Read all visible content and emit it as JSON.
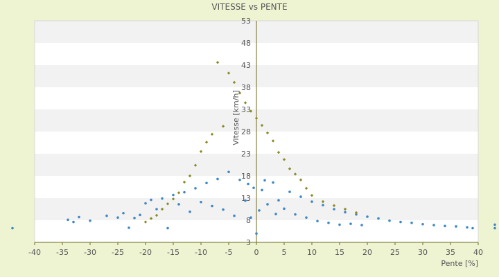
{
  "chart_data": {
    "type": "scatter",
    "title": "VITESSE vs PENTE",
    "xlabel": "Pente [%]",
    "ylabel": "Vitesse [km/h]",
    "xlim": [
      -40,
      40
    ],
    "ylim": [
      3,
      53
    ],
    "x_ticks": [
      -40,
      -35,
      -30,
      -25,
      -20,
      -15,
      -10,
      -5,
      0,
      5,
      10,
      15,
      20,
      25,
      30,
      35,
      40
    ],
    "y_ticks": [
      3,
      8,
      13,
      18,
      23,
      28,
      33,
      38,
      43,
      48,
      53
    ],
    "grid": "horizontal-bands",
    "legend": "none",
    "series": [
      {
        "color": "#3f88c5",
        "marker": "point",
        "points": [
          [
            -44,
            6.2
          ],
          [
            -34,
            8.1
          ],
          [
            -33,
            7.6
          ],
          [
            -32,
            8.7
          ],
          [
            -30,
            7.9
          ],
          [
            -27,
            9.0
          ],
          [
            -25,
            8.6
          ],
          [
            -24,
            9.6
          ],
          [
            -23,
            6.3
          ],
          [
            -22,
            8.5
          ],
          [
            -21,
            9.2
          ],
          [
            -20,
            11.8
          ],
          [
            -19,
            12.6
          ],
          [
            -18,
            10.5
          ],
          [
            -17,
            12.9
          ],
          [
            -16,
            6.2
          ],
          [
            -15,
            13.7
          ],
          [
            -14,
            11.6
          ],
          [
            -13,
            14.3
          ],
          [
            -12,
            9.9
          ],
          [
            -11,
            15.2
          ],
          [
            -10,
            12.1
          ],
          [
            -9,
            16.4
          ],
          [
            -8,
            11.2
          ],
          [
            -7,
            17.3
          ],
          [
            -6,
            10.4
          ],
          [
            -5,
            18.9
          ],
          [
            -4,
            9.0
          ],
          [
            -3,
            17.1
          ],
          [
            -2,
            12.4
          ],
          [
            -1.5,
            16.2
          ],
          [
            -1,
            8.6
          ],
          [
            -0.5,
            15.3
          ],
          [
            0,
            5.0
          ],
          [
            0.5,
            10.2
          ],
          [
            1,
            14.8
          ],
          [
            1.5,
            17.0
          ],
          [
            2,
            11.6
          ],
          [
            3,
            16.5
          ],
          [
            3.5,
            9.4
          ],
          [
            4,
            12.5
          ],
          [
            5,
            10.6
          ],
          [
            6,
            14.4
          ],
          [
            7,
            9.3
          ],
          [
            8,
            13.3
          ],
          [
            9,
            8.6
          ],
          [
            10,
            12.2
          ],
          [
            11,
            7.8
          ],
          [
            12,
            11.4
          ],
          [
            13,
            7.4
          ],
          [
            14,
            10.5
          ],
          [
            15,
            7.0
          ],
          [
            16,
            9.8
          ],
          [
            17,
            7.2
          ],
          [
            18,
            9.3
          ],
          [
            19,
            6.9
          ],
          [
            20,
            8.8
          ],
          [
            22,
            8.4
          ],
          [
            24,
            7.9
          ],
          [
            26,
            7.6
          ],
          [
            28,
            7.4
          ],
          [
            30,
            7.1
          ],
          [
            32,
            6.9
          ],
          [
            34,
            6.7
          ],
          [
            36,
            6.6
          ],
          [
            38,
            6.4
          ],
          [
            39,
            6.2
          ],
          [
            43,
            7.0
          ],
          [
            43,
            6.2
          ]
        ]
      },
      {
        "color": "#8c8a26",
        "marker": "diamond",
        "points": [
          [
            -7,
            43.6
          ],
          [
            -5,
            41.2
          ],
          [
            -4,
            39.1
          ],
          [
            -3,
            36.7
          ],
          [
            -2,
            34.5
          ],
          [
            -1,
            32.6
          ],
          [
            0,
            31.0
          ],
          [
            1,
            29.4
          ],
          [
            2,
            27.7
          ],
          [
            3,
            25.9
          ],
          [
            4,
            23.3
          ],
          [
            5,
            21.7
          ],
          [
            6,
            19.6
          ],
          [
            7,
            18.4
          ],
          [
            8,
            17.1
          ],
          [
            9,
            15.2
          ],
          [
            10,
            13.6
          ],
          [
            12,
            12.2
          ],
          [
            14,
            11.3
          ],
          [
            16,
            10.5
          ],
          [
            18,
            9.7
          ],
          [
            -6,
            29.2
          ],
          [
            -8,
            27.4
          ],
          [
            -9,
            25.6
          ],
          [
            -10,
            23.5
          ],
          [
            -11,
            20.4
          ],
          [
            -12,
            18.0
          ],
          [
            -13,
            16.6
          ],
          [
            -14,
            14.2
          ],
          [
            -15,
            12.8
          ],
          [
            -16,
            11.7
          ],
          [
            -17,
            10.5
          ],
          [
            -18,
            9.1
          ],
          [
            -19,
            8.4
          ],
          [
            -20,
            7.6
          ]
        ]
      }
    ]
  }
}
